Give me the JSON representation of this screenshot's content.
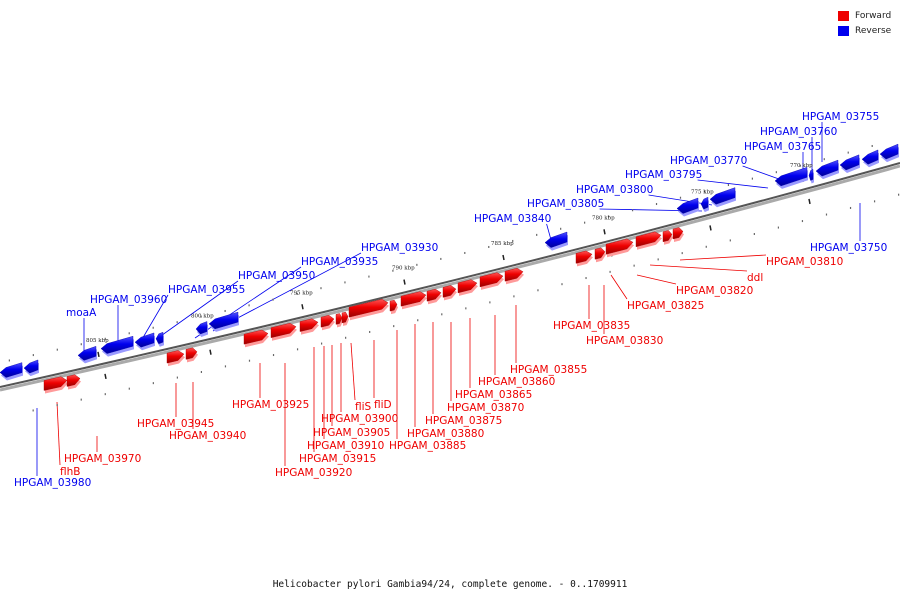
{
  "legend": [
    {
      "label": "Forward",
      "color": "#ee0000"
    },
    {
      "label": "Reverse",
      "color": "#0000ee"
    }
  ],
  "caption": "Helicobacter pylori Gambia94/24, complete genome. - 0..1709911",
  "colors": {
    "forward": "#ee0000",
    "reverse": "#0000ee",
    "backbone": "#555555"
  },
  "ticks": [
    {
      "label": "805 kbp",
      "big": true
    },
    {
      "label": "800 kbp",
      "big": true
    },
    {
      "label": "795 kbp",
      "big": true
    },
    {
      "label": "790 kbp",
      "big": true
    },
    {
      "label": "785 kbp",
      "big": true
    },
    {
      "label": "780 kbp",
      "big": true
    },
    {
      "label": "775 kbp",
      "big": true
    },
    {
      "label": "770 kbp",
      "big": true
    }
  ],
  "genes": [
    {
      "name": "HPGAM_03755",
      "strand": "reverse"
    },
    {
      "name": "HPGAM_03760",
      "strand": "reverse"
    },
    {
      "name": "HPGAM_03765",
      "strand": "reverse"
    },
    {
      "name": "HPGAM_03770",
      "strand": "reverse"
    },
    {
      "name": "HPGAM_03795",
      "strand": "reverse"
    },
    {
      "name": "HPGAM_03800",
      "strand": "reverse"
    },
    {
      "name": "HPGAM_03805",
      "strand": "reverse"
    },
    {
      "name": "HPGAM_03840",
      "strand": "reverse"
    },
    {
      "name": "HPGAM_03930",
      "strand": "reverse"
    },
    {
      "name": "HPGAM_03935",
      "strand": "reverse"
    },
    {
      "name": "HPGAM_03950",
      "strand": "reverse"
    },
    {
      "name": "HPGAM_03955",
      "strand": "reverse"
    },
    {
      "name": "HPGAM_03960",
      "strand": "reverse"
    },
    {
      "name": "moaA",
      "strand": "reverse"
    },
    {
      "name": "HPGAM_03750",
      "strand": "reverse"
    },
    {
      "name": "HPGAM_03980",
      "strand": "reverse"
    },
    {
      "name": "HPGAM_03810",
      "strand": "forward"
    },
    {
      "name": "ddl",
      "strand": "forward"
    },
    {
      "name": "HPGAM_03820",
      "strand": "forward"
    },
    {
      "name": "HPGAM_03825",
      "strand": "forward"
    },
    {
      "name": "HPGAM_03835",
      "strand": "forward"
    },
    {
      "name": "HPGAM_03830",
      "strand": "forward"
    },
    {
      "name": "HPGAM_03855",
      "strand": "forward"
    },
    {
      "name": "HPGAM_03860",
      "strand": "forward"
    },
    {
      "name": "HPGAM_03865",
      "strand": "forward"
    },
    {
      "name": "HPGAM_03870",
      "strand": "forward"
    },
    {
      "name": "HPGAM_03875",
      "strand": "forward"
    },
    {
      "name": "HPGAM_03880",
      "strand": "forward"
    },
    {
      "name": "HPGAM_03885",
      "strand": "forward"
    },
    {
      "name": "fliD",
      "strand": "forward"
    },
    {
      "name": "fliS",
      "strand": "forward"
    },
    {
      "name": "HPGAM_03900",
      "strand": "forward"
    },
    {
      "name": "HPGAM_03905",
      "strand": "forward"
    },
    {
      "name": "HPGAM_03910",
      "strand": "forward"
    },
    {
      "name": "HPGAM_03915",
      "strand": "forward"
    },
    {
      "name": "HPGAM_03920",
      "strand": "forward"
    },
    {
      "name": "HPGAM_03925",
      "strand": "forward"
    },
    {
      "name": "HPGAM_03945",
      "strand": "forward"
    },
    {
      "name": "HPGAM_03940",
      "strand": "forward"
    },
    {
      "name": "HPGAM_03970",
      "strand": "forward"
    },
    {
      "name": "flhB",
      "strand": "forward"
    }
  ]
}
